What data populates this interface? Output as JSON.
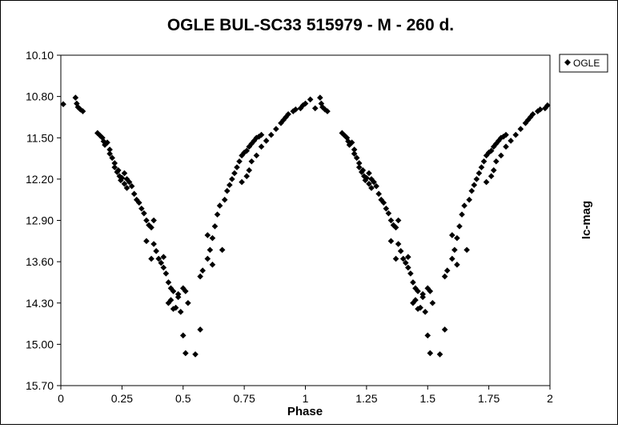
{
  "chart_data": {
    "type": "scatter",
    "title": "OGLE BUL-SC33 515979 - M - 260 d.",
    "xlabel": "Phase",
    "ylabel": "Ic-mag",
    "xlim": [
      0,
      2
    ],
    "ylim": [
      10.1,
      15.7
    ],
    "y_inverted": true,
    "grid": false,
    "legend_position": "top-right",
    "x_ticks": [
      "0",
      "0.25",
      "0.5",
      "0.75",
      "1",
      "1.25",
      "1.5",
      "1.75",
      "2"
    ],
    "y_ticks": [
      "10.10",
      "10.80",
      "11.50",
      "12.20",
      "12.90",
      "13.60",
      "14.30",
      "15.00",
      "15.70"
    ],
    "series": [
      {
        "name": "OGLE",
        "color": "#000000",
        "marker": "diamond",
        "points": [
          [
            0.01,
            10.93
          ],
          [
            0.06,
            10.82
          ],
          [
            0.065,
            10.92
          ],
          [
            0.07,
            10.98
          ],
          [
            0.08,
            11.02
          ],
          [
            0.09,
            11.05
          ],
          [
            0.15,
            11.42
          ],
          [
            0.16,
            11.46
          ],
          [
            0.17,
            11.5
          ],
          [
            0.175,
            11.56
          ],
          [
            0.18,
            11.62
          ],
          [
            0.19,
            11.58
          ],
          [
            0.2,
            11.7
          ],
          [
            0.2,
            11.77
          ],
          [
            0.21,
            11.84
          ],
          [
            0.22,
            11.93
          ],
          [
            0.22,
            12.0
          ],
          [
            0.23,
            12.08
          ],
          [
            0.235,
            12.05
          ],
          [
            0.24,
            12.15
          ],
          [
            0.245,
            12.22
          ],
          [
            0.25,
            12.18
          ],
          [
            0.26,
            12.1
          ],
          [
            0.26,
            12.28
          ],
          [
            0.27,
            12.2
          ],
          [
            0.27,
            12.35
          ],
          [
            0.28,
            12.25
          ],
          [
            0.29,
            12.32
          ],
          [
            0.3,
            12.45
          ],
          [
            0.31,
            12.55
          ],
          [
            0.32,
            12.6
          ],
          [
            0.33,
            12.7
          ],
          [
            0.34,
            12.78
          ],
          [
            0.35,
            12.9
          ],
          [
            0.36,
            12.98
          ],
          [
            0.37,
            13.02
          ],
          [
            0.35,
            13.25
          ],
          [
            0.38,
            12.9
          ],
          [
            0.38,
            13.3
          ],
          [
            0.37,
            13.55
          ],
          [
            0.39,
            13.42
          ],
          [
            0.4,
            13.55
          ],
          [
            0.41,
            13.62
          ],
          [
            0.42,
            13.7
          ],
          [
            0.42,
            13.52
          ],
          [
            0.43,
            13.8
          ],
          [
            0.44,
            13.95
          ],
          [
            0.45,
            14.05
          ],
          [
            0.46,
            14.1
          ],
          [
            0.44,
            14.3
          ],
          [
            0.45,
            14.25
          ],
          [
            0.46,
            14.4
          ],
          [
            0.47,
            14.38
          ],
          [
            0.48,
            14.2
          ],
          [
            0.49,
            14.45
          ],
          [
            0.48,
            14.15
          ],
          [
            0.5,
            14.05
          ],
          [
            0.51,
            14.1
          ],
          [
            0.52,
            14.3
          ],
          [
            0.5,
            14.85
          ],
          [
            0.51,
            15.15
          ],
          [
            0.55,
            15.17
          ],
          [
            0.57,
            14.75
          ],
          [
            0.57,
            13.85
          ],
          [
            0.58,
            13.75
          ],
          [
            0.6,
            13.55
          ],
          [
            0.61,
            13.4
          ],
          [
            0.62,
            13.2
          ],
          [
            0.63,
            13.0
          ],
          [
            0.64,
            12.8
          ],
          [
            0.65,
            12.65
          ],
          [
            0.6,
            13.15
          ],
          [
            0.62,
            13.65
          ],
          [
            0.66,
            13.4
          ],
          [
            0.67,
            12.55
          ],
          [
            0.68,
            12.4
          ],
          [
            0.69,
            12.3
          ],
          [
            0.7,
            12.2
          ],
          [
            0.71,
            12.1
          ],
          [
            0.72,
            12.0
          ],
          [
            0.73,
            11.9
          ],
          [
            0.74,
            11.8
          ],
          [
            0.75,
            11.75
          ],
          [
            0.76,
            11.72
          ],
          [
            0.77,
            11.65
          ],
          [
            0.78,
            11.6
          ],
          [
            0.79,
            11.55
          ],
          [
            0.8,
            11.5
          ],
          [
            0.81,
            11.48
          ],
          [
            0.82,
            11.45
          ],
          [
            0.74,
            12.25
          ],
          [
            0.76,
            12.15
          ],
          [
            0.78,
            11.9
          ],
          [
            0.77,
            12.05
          ],
          [
            0.8,
            11.8
          ],
          [
            0.82,
            11.65
          ],
          [
            0.84,
            11.55
          ],
          [
            0.86,
            11.45
          ],
          [
            0.88,
            11.35
          ],
          [
            0.9,
            11.25
          ],
          [
            0.91,
            11.2
          ],
          [
            0.92,
            11.15
          ],
          [
            0.93,
            11.1
          ],
          [
            0.95,
            11.05
          ],
          [
            0.96,
            11.02
          ],
          [
            0.98,
            11.0
          ],
          [
            0.99,
            10.95
          ],
          [
            1.0,
            10.92
          ],
          [
            1.02,
            10.85
          ],
          [
            1.04,
            11.0
          ],
          [
            1.06,
            10.82
          ],
          [
            1.065,
            10.92
          ],
          [
            1.07,
            10.98
          ],
          [
            1.08,
            11.02
          ],
          [
            1.09,
            11.05
          ],
          [
            1.15,
            11.42
          ],
          [
            1.16,
            11.46
          ],
          [
            1.17,
            11.5
          ],
          [
            1.175,
            11.56
          ],
          [
            1.18,
            11.62
          ],
          [
            1.19,
            11.58
          ],
          [
            1.2,
            11.7
          ],
          [
            1.2,
            11.77
          ],
          [
            1.21,
            11.84
          ],
          [
            1.22,
            11.93
          ],
          [
            1.22,
            12.0
          ],
          [
            1.23,
            12.08
          ],
          [
            1.235,
            12.05
          ],
          [
            1.24,
            12.15
          ],
          [
            1.245,
            12.22
          ],
          [
            1.25,
            12.18
          ],
          [
            1.26,
            12.1
          ],
          [
            1.26,
            12.28
          ],
          [
            1.27,
            12.2
          ],
          [
            1.27,
            12.35
          ],
          [
            1.28,
            12.25
          ],
          [
            1.29,
            12.32
          ],
          [
            1.3,
            12.45
          ],
          [
            1.31,
            12.55
          ],
          [
            1.32,
            12.6
          ],
          [
            1.33,
            12.7
          ],
          [
            1.34,
            12.78
          ],
          [
            1.35,
            12.9
          ],
          [
            1.36,
            12.98
          ],
          [
            1.37,
            13.02
          ],
          [
            1.35,
            13.25
          ],
          [
            1.38,
            12.9
          ],
          [
            1.38,
            13.3
          ],
          [
            1.37,
            13.55
          ],
          [
            1.39,
            13.42
          ],
          [
            1.4,
            13.55
          ],
          [
            1.41,
            13.62
          ],
          [
            1.42,
            13.7
          ],
          [
            1.42,
            13.52
          ],
          [
            1.43,
            13.8
          ],
          [
            1.44,
            13.95
          ],
          [
            1.45,
            14.05
          ],
          [
            1.46,
            14.1
          ],
          [
            1.44,
            14.3
          ],
          [
            1.45,
            14.25
          ],
          [
            1.46,
            14.4
          ],
          [
            1.47,
            14.38
          ],
          [
            1.48,
            14.2
          ],
          [
            1.49,
            14.45
          ],
          [
            1.48,
            14.15
          ],
          [
            1.5,
            14.05
          ],
          [
            1.51,
            14.1
          ],
          [
            1.52,
            14.3
          ],
          [
            1.5,
            14.85
          ],
          [
            1.51,
            15.15
          ],
          [
            1.55,
            15.17
          ],
          [
            1.57,
            14.75
          ],
          [
            1.57,
            13.85
          ],
          [
            1.58,
            13.75
          ],
          [
            1.6,
            13.55
          ],
          [
            1.61,
            13.4
          ],
          [
            1.62,
            13.2
          ],
          [
            1.63,
            13.0
          ],
          [
            1.64,
            12.8
          ],
          [
            1.65,
            12.65
          ],
          [
            1.6,
            13.15
          ],
          [
            1.62,
            13.65
          ],
          [
            1.66,
            13.4
          ],
          [
            1.67,
            12.55
          ],
          [
            1.68,
            12.4
          ],
          [
            1.69,
            12.3
          ],
          [
            1.7,
            12.2
          ],
          [
            1.71,
            12.1
          ],
          [
            1.72,
            12.0
          ],
          [
            1.73,
            11.9
          ],
          [
            1.74,
            11.8
          ],
          [
            1.75,
            11.75
          ],
          [
            1.76,
            11.72
          ],
          [
            1.77,
            11.65
          ],
          [
            1.78,
            11.6
          ],
          [
            1.79,
            11.55
          ],
          [
            1.8,
            11.5
          ],
          [
            1.81,
            11.48
          ],
          [
            1.82,
            11.45
          ],
          [
            1.74,
            12.25
          ],
          [
            1.76,
            12.15
          ],
          [
            1.78,
            11.9
          ],
          [
            1.77,
            12.05
          ],
          [
            1.8,
            11.8
          ],
          [
            1.82,
            11.65
          ],
          [
            1.84,
            11.55
          ],
          [
            1.86,
            11.45
          ],
          [
            1.88,
            11.35
          ],
          [
            1.9,
            11.25
          ],
          [
            1.91,
            11.2
          ],
          [
            1.92,
            11.15
          ],
          [
            1.93,
            11.1
          ],
          [
            1.95,
            11.05
          ],
          [
            1.96,
            11.02
          ],
          [
            1.98,
            11.0
          ],
          [
            1.99,
            10.95
          ]
        ]
      }
    ]
  }
}
